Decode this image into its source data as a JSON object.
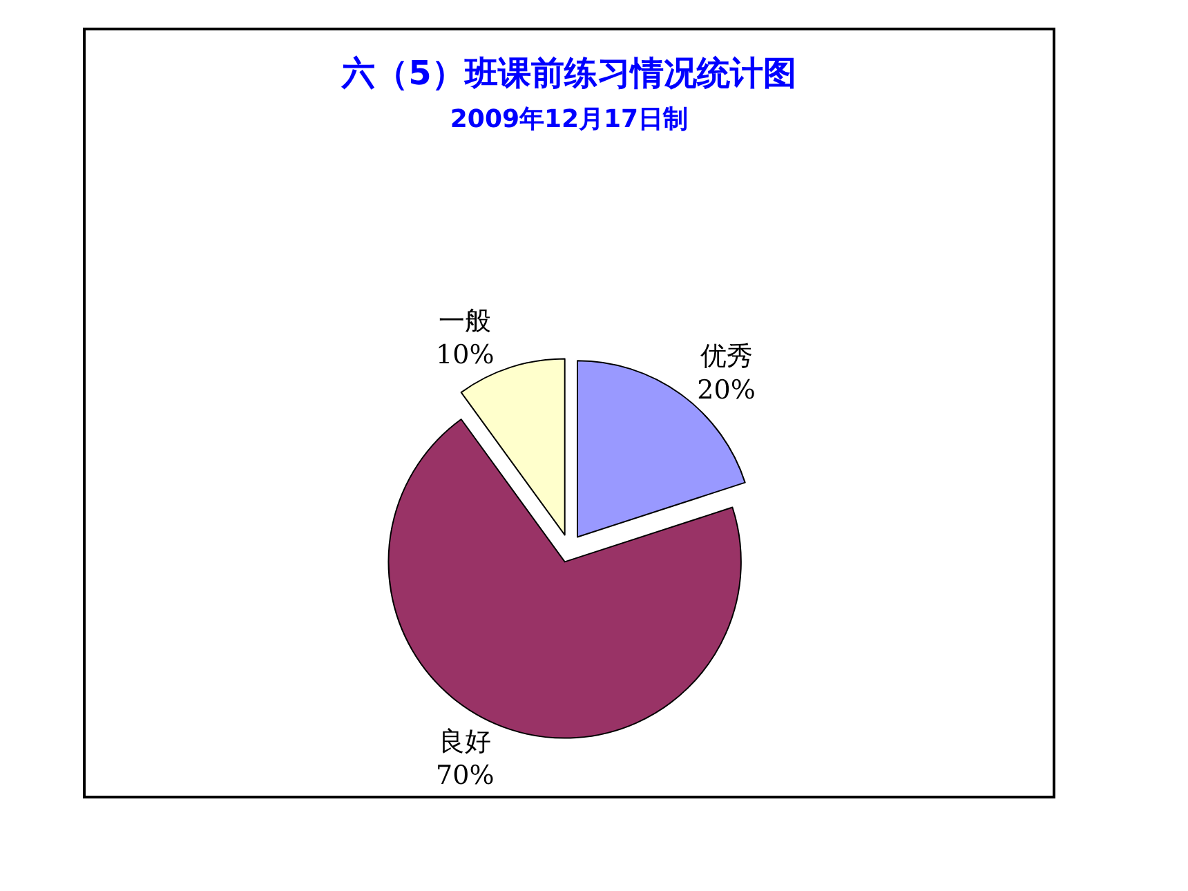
{
  "chart_data": {
    "type": "pie",
    "title": "六（5）班课前练习情况统计图",
    "subtitle": "2009年12月17日制",
    "categories": [
      "优秀",
      "良好",
      "一般"
    ],
    "values": [
      20,
      70,
      10
    ],
    "value_labels": [
      "20%",
      "70%",
      "10%"
    ],
    "colors": [
      "#9999ff",
      "#993366",
      "#ffffcc"
    ],
    "legend": false
  }
}
